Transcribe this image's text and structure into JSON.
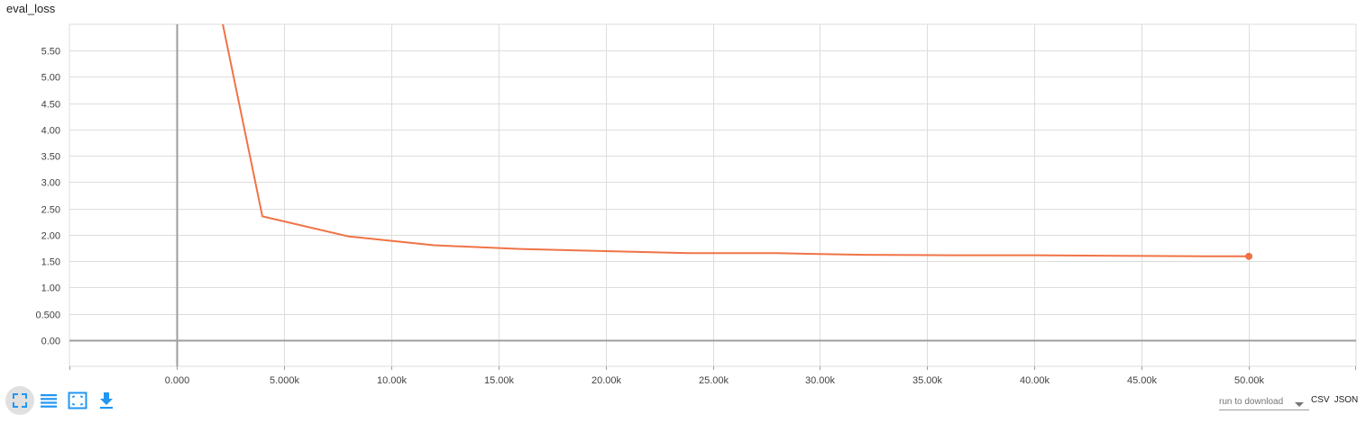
{
  "card": {
    "title": "eval_loss"
  },
  "chart_data": {
    "type": "line",
    "title": "eval_loss",
    "xlabel": "",
    "ylabel": "",
    "xlim": [
      -5000,
      55000
    ],
    "ylim": [
      -0.5,
      6.0
    ],
    "x_ticks": [
      0,
      5000,
      10000,
      15000,
      20000,
      25000,
      30000,
      35000,
      40000,
      45000,
      50000
    ],
    "x_tick_labels": [
      "0.000",
      "5.000k",
      "10.00k",
      "15.00k",
      "20.00k",
      "25.00k",
      "30.00k",
      "35.00k",
      "40.00k",
      "45.00k",
      "50.00k"
    ],
    "y_ticks": [
      0,
      0.5,
      1.0,
      1.5,
      2.0,
      2.5,
      3.0,
      3.5,
      4.0,
      4.5,
      5.0,
      5.5
    ],
    "y_tick_labels": [
      "0.00",
      "0.500",
      "1.00",
      "1.50",
      "2.00",
      "2.50",
      "3.00",
      "3.50",
      "4.00",
      "4.50",
      "5.00",
      "5.50"
    ],
    "grid": true,
    "series": [
      {
        "color": "#f07346",
        "x": [
          2000,
          4000,
          8000,
          12000,
          16000,
          20000,
          24000,
          28000,
          32000,
          36000,
          40000,
          44000,
          48000,
          50000
        ],
        "y": [
          6.3,
          2.35,
          1.97,
          1.8,
          1.73,
          1.69,
          1.65,
          1.65,
          1.62,
          1.61,
          1.61,
          1.6,
          1.59,
          1.59
        ]
      }
    ]
  },
  "toolbar": {
    "buttons": [
      {
        "name": "fullscreen-icon",
        "active": true
      },
      {
        "name": "log-scale-icon",
        "active": false
      },
      {
        "name": "fit-domain-icon",
        "active": false
      },
      {
        "name": "download-icon",
        "active": false
      }
    ]
  },
  "download": {
    "run_placeholder": "run to download",
    "csv_label": "CSV",
    "json_label": "JSON"
  },
  "colors": {
    "accent": "#2196f3",
    "series": "#f07346",
    "grid": "#dddddd",
    "axis": "#9e9e9e"
  }
}
